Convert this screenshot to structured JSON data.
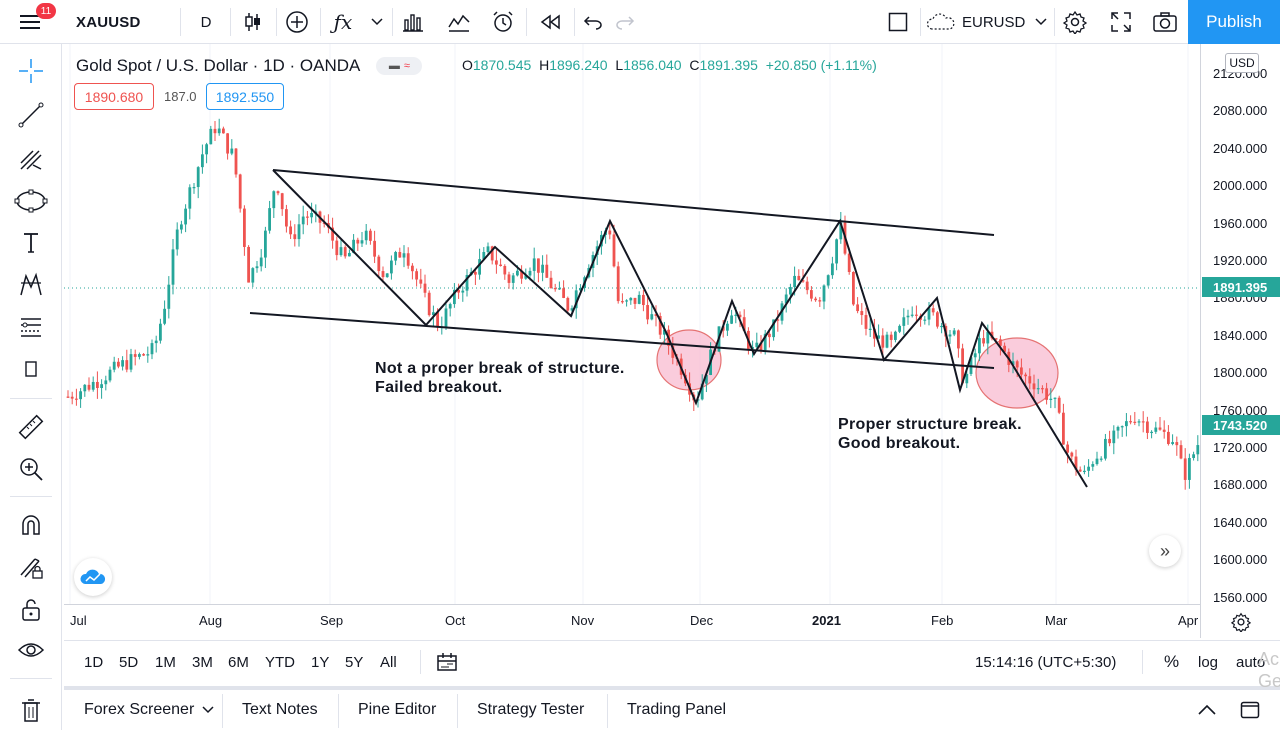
{
  "topbar": {
    "notification_count": "11",
    "symbol": "XAUUSD",
    "interval": "D",
    "compare_symbol": "EURUSD",
    "publish_label": "Publish"
  },
  "legend": {
    "title": "Gold Spot / U.S. Dollar · 1D · OANDA",
    "open_key": "O",
    "open": "1870.545",
    "high_key": "H",
    "high": "1896.240",
    "low_key": "L",
    "low": "1856.040",
    "close_key": "C",
    "close": "1891.395",
    "change": "+20.850 (+1.11%)",
    "bid": "1890.680",
    "spread": "187.0",
    "ask": "1892.550"
  },
  "annotations": {
    "failed_line1": "Not a proper break of structure.",
    "failed_line2": "Failed breakout.",
    "good_line1": "Proper structure break.",
    "good_line2": "Good breakout."
  },
  "price_scale": {
    "currency": "USD",
    "labels": [
      "2120.000",
      "2080.000",
      "2040.000",
      "2000.000",
      "1960.000",
      "1920.000",
      "1880.000",
      "1840.000",
      "1800.000",
      "1760.000",
      "1720.000",
      "1680.000",
      "1640.000",
      "1600.000",
      "1560.000"
    ],
    "current_price_tag": "1891.395",
    "crosshair_price_tag": "1743.520"
  },
  "time_scale": {
    "labels": [
      "Jul",
      "Aug",
      "Sep",
      "Oct",
      "Nov",
      "Dec",
      "2021",
      "Feb",
      "Mar",
      "Apr"
    ]
  },
  "range_bar": {
    "ranges": [
      "1D",
      "5D",
      "1M",
      "3M",
      "6M",
      "YTD",
      "1Y",
      "5Y",
      "All"
    ],
    "clock": "15:14:16 (UTC+5:30)",
    "percent": "%",
    "log": "log",
    "auto": "auto"
  },
  "bottom_tabs": [
    "Forex Screener",
    "Text Notes",
    "Pine Editor",
    "Strategy Tester",
    "Trading Panel"
  ],
  "watermark": {
    "line1": "Ac",
    "line2": "Ge"
  },
  "colors": {
    "up": "#26a69a",
    "down": "#ef5350",
    "accent": "#2196f3",
    "ellipse_fill": "#f8bbd0",
    "ellipse_stroke": "#e57373"
  }
}
